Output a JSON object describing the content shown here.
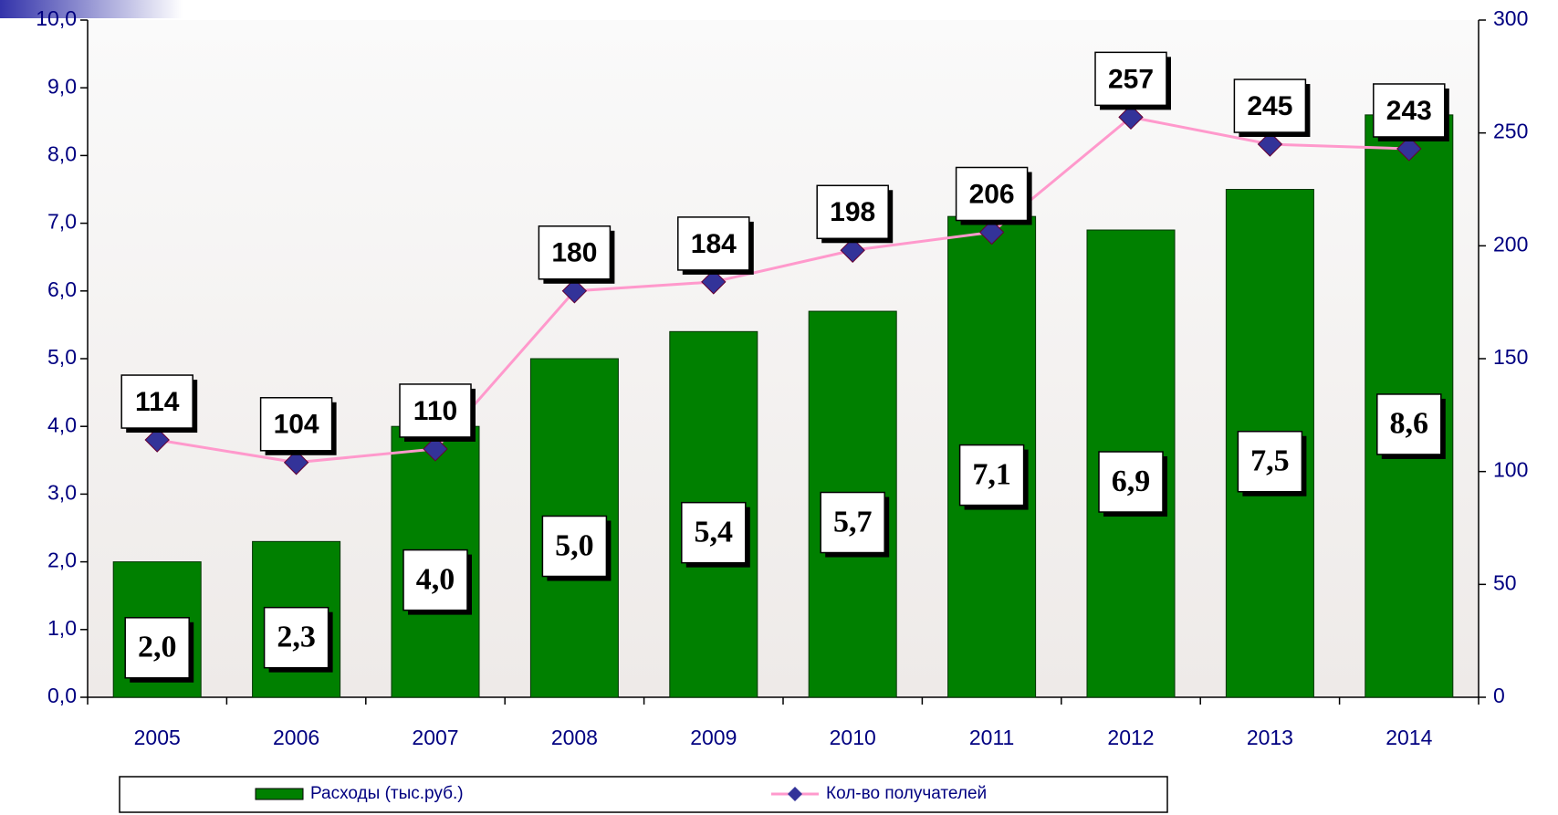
{
  "chart_data": {
    "type": "bar",
    "categories": [
      "2005",
      "2006",
      "2007",
      "2008",
      "2009",
      "2010",
      "2011",
      "2012",
      "2013",
      "2014"
    ],
    "series": [
      {
        "name": "Расходы (тыс.руб.)",
        "type": "bar",
        "color": "#008000",
        "values": [
          2.0,
          2.3,
          4.0,
          5.0,
          5.4,
          5.7,
          7.1,
          6.9,
          7.5,
          8.6
        ],
        "value_labels": [
          "2,0",
          "2,3",
          "4,0",
          "5,0",
          "5,4",
          "5,7",
          "7,1",
          "6,9",
          "7,5",
          "8,6"
        ]
      },
      {
        "name": "Кол-во получателей",
        "type": "line",
        "color": "#ff99cc",
        "marker_color": "#333399",
        "axis": "y2",
        "values": [
          114,
          104,
          110,
          180,
          184,
          198,
          206,
          257,
          245,
          243
        ]
      }
    ],
    "ylim": [
      0,
      10
    ],
    "yticks": [
      {
        "value": 0,
        "label": "0,0"
      },
      {
        "value": 1,
        "label": "1,0"
      },
      {
        "value": 2,
        "label": "2,0"
      },
      {
        "value": 3,
        "label": "3,0"
      },
      {
        "value": 4,
        "label": "4,0"
      },
      {
        "value": 5,
        "label": "5,0"
      },
      {
        "value": 6,
        "label": "6,0"
      },
      {
        "value": 7,
        "label": "7,0"
      },
      {
        "value": 8,
        "label": "8,0"
      },
      {
        "value": 9,
        "label": "9,0"
      },
      {
        "value": 10,
        "label": "10,0"
      }
    ],
    "y2lim": [
      0,
      300
    ],
    "y2ticks": [
      0,
      50,
      100,
      150,
      200,
      250,
      300
    ],
    "legend": "bottom"
  }
}
